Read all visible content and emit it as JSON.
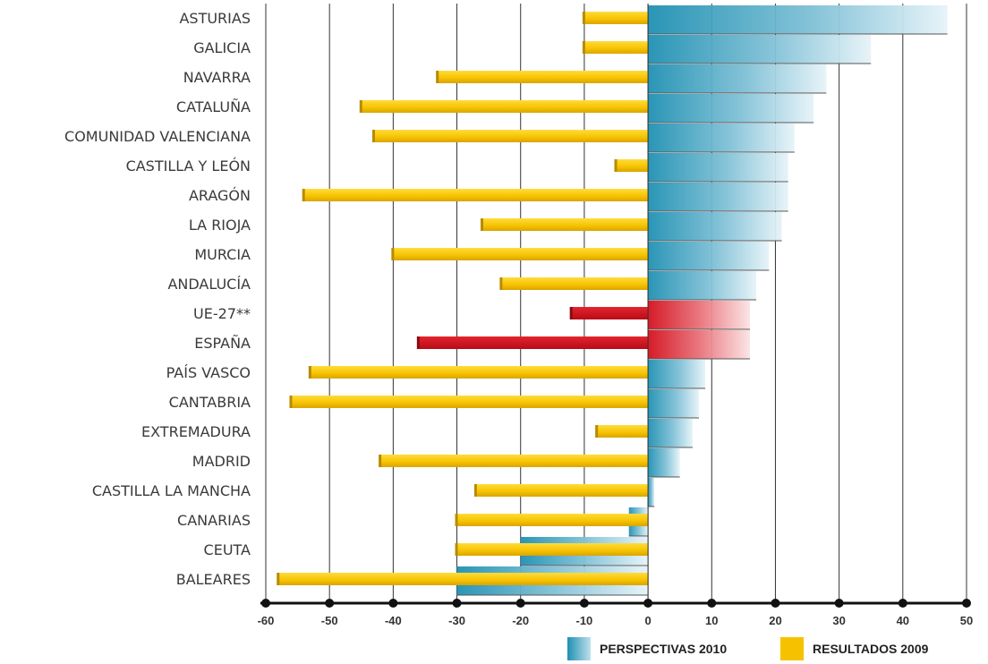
{
  "chart_data": {
    "type": "bar",
    "orientation": "horizontal",
    "categories": [
      "ASTURIAS",
      "GALICIA",
      "NAVARRA",
      "CATALUÑA",
      "COMUNIDAD VALENCIANA",
      "CASTILLA Y LEÓN",
      "ARAGÓN",
      "LA RIOJA",
      "MURCIA",
      "ANDALUCÍA",
      "UE-27**",
      "ESPAÑA",
      "PAÍS VASCO",
      "CANTABRIA",
      "EXTREMADURA",
      "MADRID",
      "CASTILLA LA MANCHA",
      "CANARIAS",
      "CEUTA",
      "BALEARES"
    ],
    "highlighted_categories": [
      "UE-27**",
      "ESPAÑA"
    ],
    "series": [
      {
        "name": "PERSPECTIVAS 2010",
        "values": [
          47,
          35,
          28,
          26,
          23,
          22,
          22,
          21,
          19,
          17,
          16,
          16,
          9,
          8,
          7,
          5,
          1,
          -3,
          -20,
          -30
        ]
      },
      {
        "name": "RESULTADOS 2009",
        "values": [
          -10,
          -10,
          -33,
          -45,
          -43,
          -5,
          -54,
          -26,
          -40,
          -23,
          -12,
          -36,
          -53,
          -56,
          -8,
          -42,
          -27,
          -30,
          -30,
          -58
        ]
      }
    ],
    "xlim": [
      -60,
      50
    ],
    "xticks": [
      -60,
      -50,
      -40,
      -30,
      -20,
      -10,
      0,
      10,
      20,
      30,
      40,
      50
    ],
    "grid": true,
    "legend": "bottom-right",
    "colors": {
      "perspectivas": "#1f90b2",
      "resultados": "#f6c200",
      "highlight": "#d2101e",
      "highlight_label": "#d2101e",
      "label": "#3a3a3a",
      "grid": "#333333"
    }
  }
}
